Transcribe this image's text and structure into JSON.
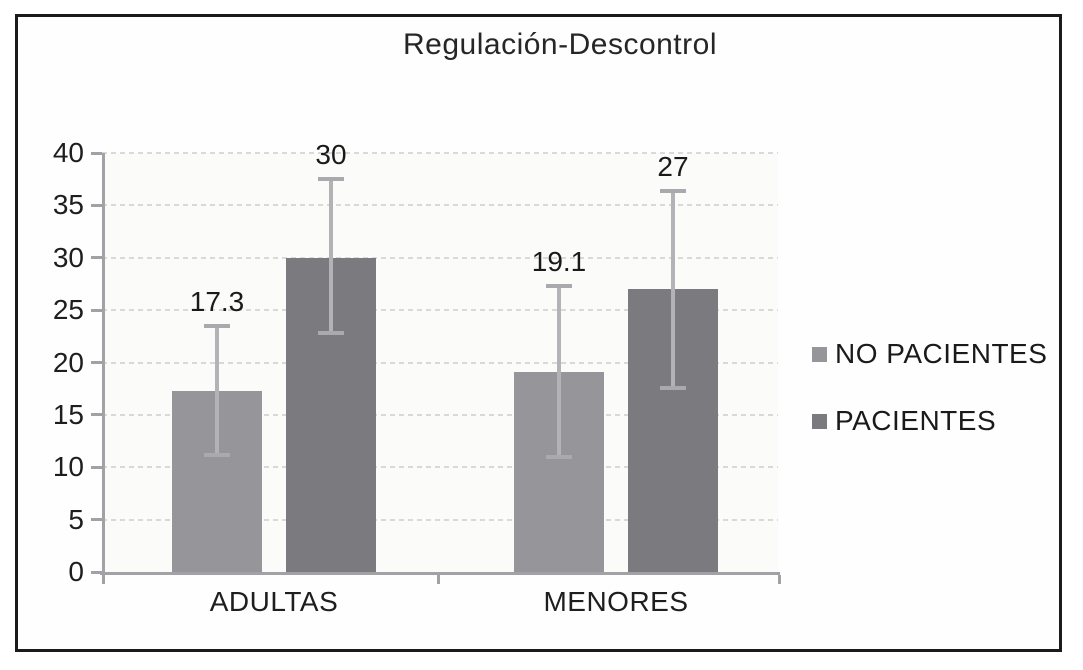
{
  "chart_data": {
    "type": "bar",
    "title": "Regulación-Descontrol",
    "categories": [
      "ADULTAS",
      "MENORES"
    ],
    "series": [
      {
        "name": "NO PACIENTES",
        "color": "#96969a",
        "values": [
          17.3,
          19.1
        ],
        "labels": [
          "17.3",
          "19.1"
        ],
        "error_upper": [
          23.5,
          27.3
        ],
        "error_lower": [
          11.2,
          11.0
        ]
      },
      {
        "name": "PACIENTES",
        "color": "#7b7b7f",
        "values": [
          30,
          27
        ],
        "labels": [
          "30",
          "27"
        ],
        "error_upper": [
          37.5,
          36.4
        ],
        "error_lower": [
          22.8,
          17.6
        ]
      }
    ],
    "ylim": [
      0,
      40
    ],
    "ytick_step": 5,
    "ytick_labels": [
      "0",
      "5",
      "10",
      "15",
      "20",
      "25",
      "30",
      "35",
      "40"
    ],
    "xlabel": "",
    "ylabel": "",
    "grid": "horizontal-dotted",
    "legend_position": "right",
    "colors": {
      "error_bar": "#b3b3b7",
      "error_cap": "#aaaaae",
      "axis": "#a2a2a6",
      "gridline": "#d9d9d9",
      "frame_border": "#1b1b1b",
      "text": "#1e1e1e",
      "plot_background": "#fbfbfa"
    }
  }
}
